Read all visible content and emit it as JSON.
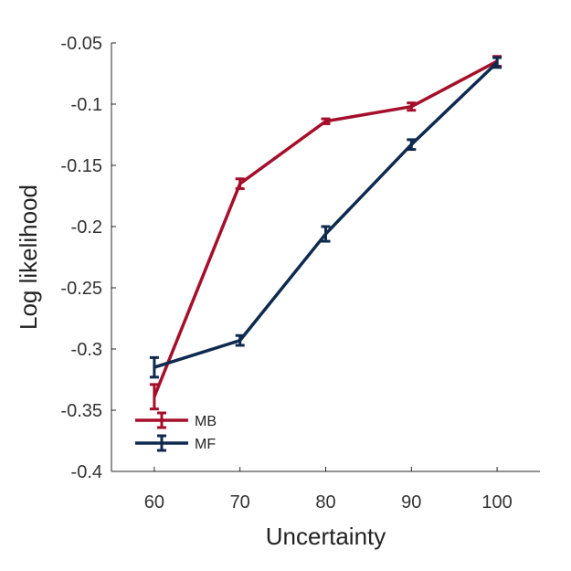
{
  "chart_data": {
    "type": "line",
    "title": "",
    "xlabel": "Uncertainty",
    "ylabel": "Log likelihood",
    "x": [
      60,
      70,
      80,
      90,
      100
    ],
    "xlim": [
      55,
      105
    ],
    "ylim": [
      -0.4,
      -0.05
    ],
    "xticks": [
      60,
      70,
      80,
      90,
      100
    ],
    "xtick_labels": [
      "60",
      "70",
      "80",
      "90",
      "100"
    ],
    "yticks": [
      -0.05,
      -0.1,
      -0.15,
      -0.2,
      -0.25,
      -0.3,
      -0.35,
      -0.4
    ],
    "ytick_labels": [
      "-0.05",
      "-0.1",
      "-0.15",
      "-0.2",
      "-0.25",
      "-0.3",
      "-0.35",
      "-0.4"
    ],
    "grid": false,
    "legend_position": "bottom-left",
    "series": [
      {
        "name": "MB",
        "color": "#a50f2b",
        "values": [
          -0.339,
          -0.165,
          -0.114,
          -0.102,
          -0.065
        ],
        "errors": [
          0.01,
          0.004,
          0.002,
          0.003,
          0.004
        ]
      },
      {
        "name": "MF",
        "color": "#0e2a4f",
        "values": [
          -0.315,
          -0.293,
          -0.206,
          -0.133,
          -0.066
        ],
        "errors": [
          0.008,
          0.004,
          0.006,
          0.004,
          0.004
        ]
      }
    ]
  }
}
